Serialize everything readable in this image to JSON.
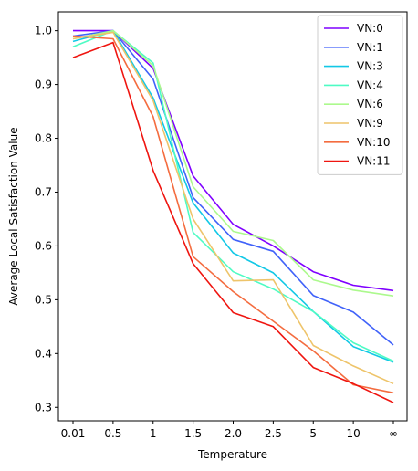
{
  "chart_data": {
    "type": "line",
    "title": "",
    "xlabel": "Temperature",
    "ylabel": "Average Local Satisfaction Value",
    "categories": [
      "0.01",
      "0.5",
      "1",
      "1.5",
      "2.0",
      "2.5",
      "5",
      "10",
      "∞"
    ],
    "ylim": [
      0.275,
      1.035
    ],
    "yticks": [
      "0.3",
      "0.4",
      "0.5",
      "0.6",
      "0.7",
      "0.8",
      "0.9",
      "1.0"
    ],
    "grid": false,
    "legend_position": "top-right",
    "series": [
      {
        "name": "VN:0",
        "color": "#7f00ff",
        "values": [
          1.0,
          1.0,
          0.93,
          0.73,
          0.64,
          0.6,
          0.552,
          0.527,
          0.517
        ]
      },
      {
        "name": "VN:1",
        "color": "#4062f9",
        "values": [
          0.99,
          1.0,
          0.91,
          0.69,
          0.612,
          0.59,
          0.508,
          0.477,
          0.416
        ]
      },
      {
        "name": "VN:3",
        "color": "#12c8e6",
        "values": [
          0.98,
          1.0,
          0.875,
          0.68,
          0.587,
          0.55,
          0.478,
          0.413,
          0.384
        ]
      },
      {
        "name": "VN:4",
        "color": "#4efbc4",
        "values": [
          0.97,
          1.0,
          0.94,
          0.625,
          0.552,
          0.52,
          0.478,
          0.42,
          0.386
        ]
      },
      {
        "name": "VN:6",
        "color": "#acf98d",
        "values": [
          0.985,
          1.0,
          0.935,
          0.71,
          0.627,
          0.61,
          0.537,
          0.518,
          0.507
        ]
      },
      {
        "name": "VN:9",
        "color": "#eec46a",
        "values": [
          0.985,
          0.997,
          0.87,
          0.65,
          0.535,
          0.537,
          0.415,
          0.377,
          0.344
        ]
      },
      {
        "name": "VN:10",
        "color": "#f46c3f",
        "values": [
          0.99,
          0.985,
          0.84,
          0.58,
          0.515,
          0.46,
          0.405,
          0.342,
          0.327
        ]
      },
      {
        "name": "VN:11",
        "color": "#ef1510",
        "values": [
          0.95,
          0.978,
          0.74,
          0.567,
          0.476,
          0.45,
          0.374,
          0.344,
          0.309
        ]
      }
    ]
  }
}
